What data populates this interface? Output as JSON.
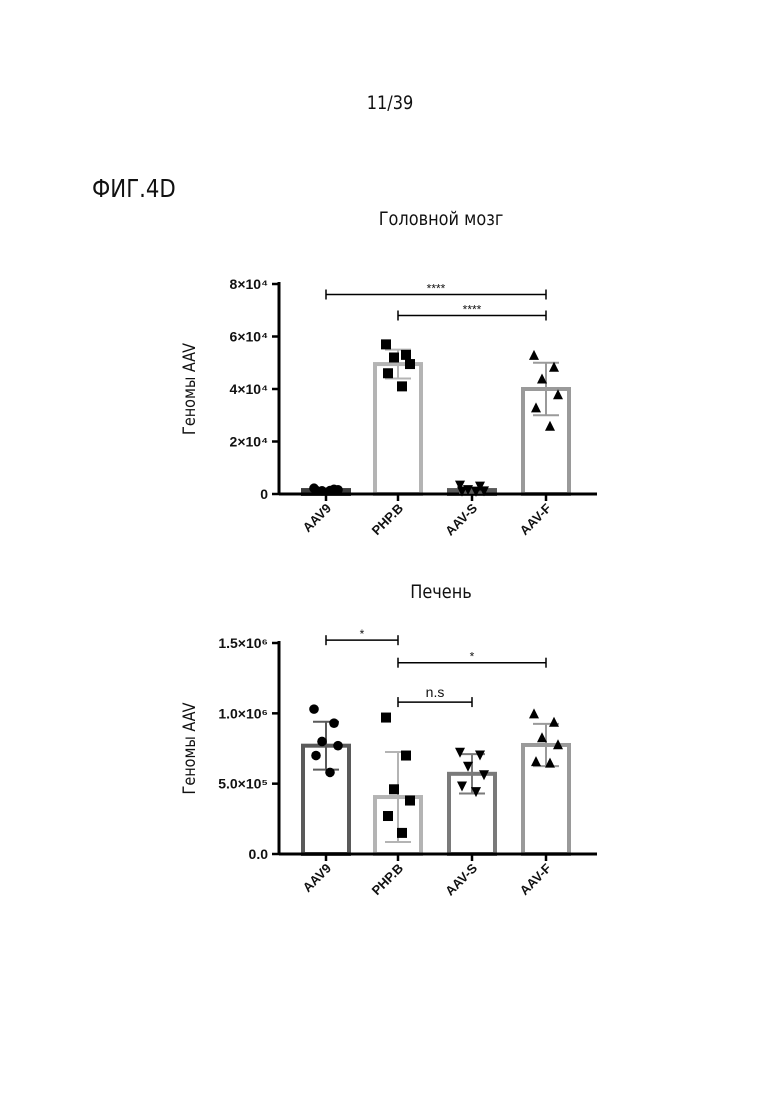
{
  "page": {
    "page_number": "11/39",
    "figure_label": "ФИГ.4D"
  },
  "chart_data": [
    {
      "type": "bar",
      "title": "Головной мозг",
      "xlabel": "",
      "ylabel": "Геномы AAV",
      "categories": [
        "AAV9",
        "PHP.B",
        "AAV-S",
        "AAV-F"
      ],
      "values": [
        1500,
        49500,
        1500,
        40000
      ],
      "error": [
        600,
        5500,
        1000,
        10000
      ],
      "ylim": [
        0,
        80000
      ],
      "yticks": [
        {
          "value": 0,
          "label": "0"
        },
        {
          "value": 20000,
          "label": "2×10⁴"
        },
        {
          "value": 40000,
          "label": "4×10⁴"
        },
        {
          "value": 60000,
          "label": "6×10⁴"
        },
        {
          "value": 80000,
          "label": "8×10⁴"
        }
      ],
      "bar_colors": [
        "#3c3c3c",
        "#b4b4b4",
        "#5a5a5a",
        "#9a9a9a"
      ],
      "markers": [
        "circle",
        "square",
        "triangle-down",
        "triangle-up"
      ],
      "points": [
        [
          2200,
          1800,
          1200,
          1600,
          1400,
          1300
        ],
        [
          57000,
          53000,
          52000,
          49500,
          46000,
          41000
        ],
        [
          3200,
          2800,
          1500,
          1000,
          900,
          800
        ],
        [
          53000,
          48500,
          44000,
          38000,
          33000,
          26000
        ]
      ],
      "significance": [
        {
          "from": 0,
          "to": 3,
          "value": 76000,
          "label": "****"
        },
        {
          "from": 1,
          "to": 3,
          "value": 68000,
          "label": "****"
        }
      ]
    },
    {
      "type": "bar",
      "title": "Печень",
      "xlabel": "",
      "ylabel": "Геномы AAV",
      "categories": [
        "AAV9",
        "PHP.B",
        "AAV-S",
        "AAV-F"
      ],
      "values": [
        770000,
        405000,
        570000,
        775000
      ],
      "error": [
        170000,
        320000,
        140000,
        150000
      ],
      "ylim": [
        0,
        1500000
      ],
      "yticks": [
        {
          "value": 0,
          "label": "0.0"
        },
        {
          "value": 500000,
          "label": "5.0×10⁵"
        },
        {
          "value": 1000000,
          "label": "1.0×10⁶"
        },
        {
          "value": 1500000,
          "label": "1.5×10⁶"
        }
      ],
      "bar_colors": [
        "#5a5a5a",
        "#b4b4b4",
        "#7a7a7a",
        "#9a9a9a"
      ],
      "markers": [
        "circle",
        "square",
        "triangle-down",
        "triangle-up"
      ],
      "points": [
        [
          1030000,
          930000,
          800000,
          770000,
          700000,
          580000
        ],
        [
          970000,
          700000,
          460000,
          380000,
          270000,
          150000
        ],
        [
          720000,
          700000,
          620000,
          560000,
          480000,
          440000
        ],
        [
          1000000,
          940000,
          830000,
          780000,
          660000,
          650000
        ]
      ],
      "significance": [
        {
          "from": 0,
          "to": 1,
          "value": 1520000,
          "label": "*"
        },
        {
          "from": 1,
          "to": 3,
          "value": 1360000,
          "label": "*"
        },
        {
          "from": 1,
          "to": 2,
          "value": 1080000,
          "label": "n.s"
        }
      ]
    }
  ]
}
